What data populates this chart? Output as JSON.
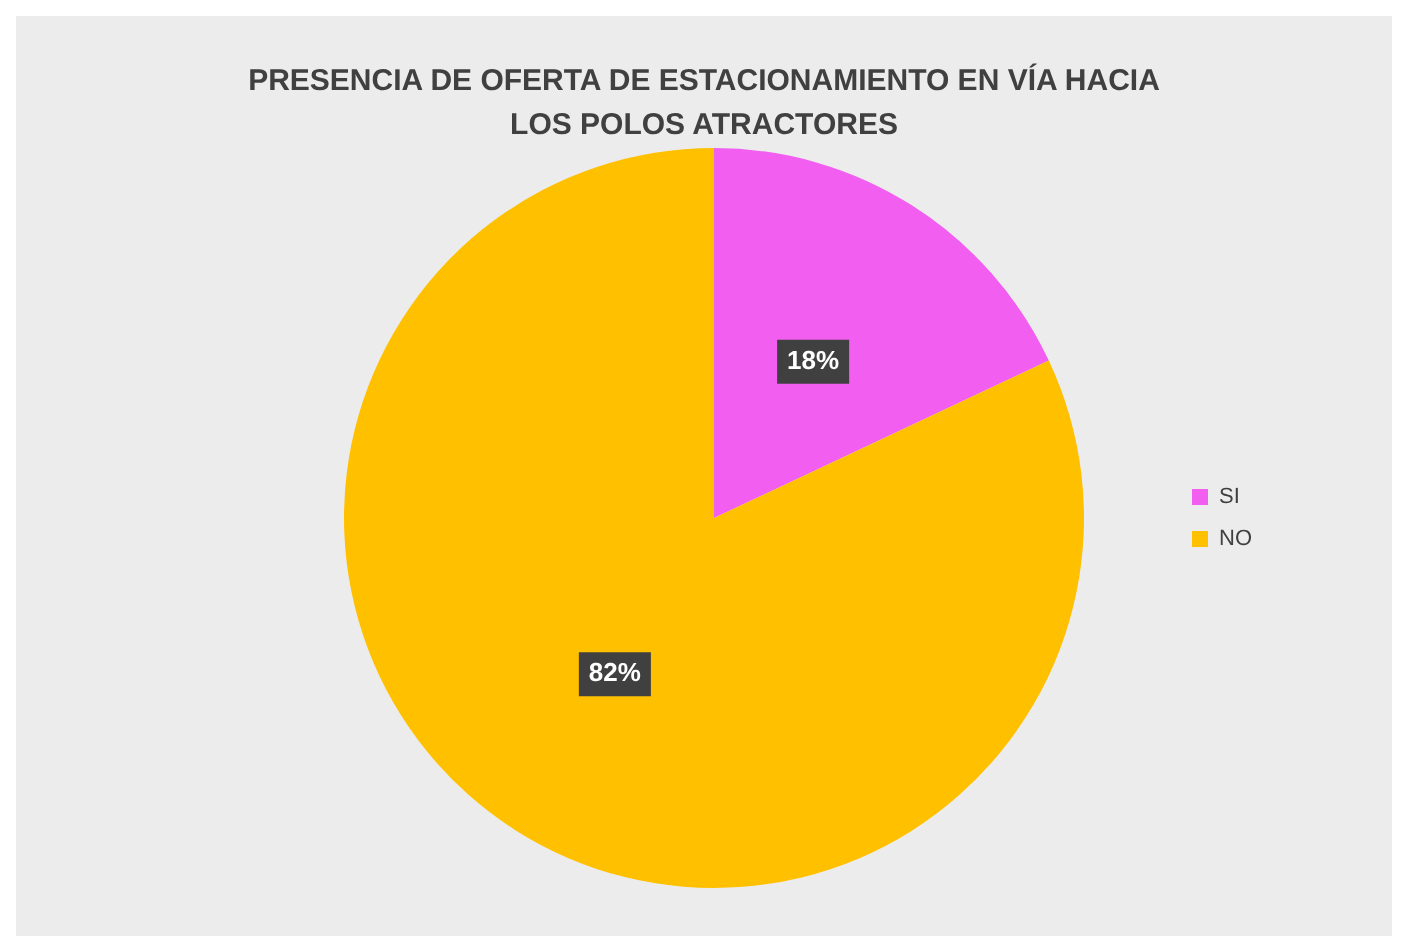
{
  "chart_data": {
    "type": "pie",
    "title": "PRESENCIA DE OFERTA DE ESTACIONAMIENTO EN VÍA HACIA LOS POLOS ATRACTORES",
    "categories": [
      "SI",
      "NO"
    ],
    "values": [
      18,
      82
    ],
    "colors": [
      "#f15ef0",
      "#ffc000"
    ],
    "value_labels": [
      "18%",
      "82%"
    ],
    "legend": "right"
  }
}
